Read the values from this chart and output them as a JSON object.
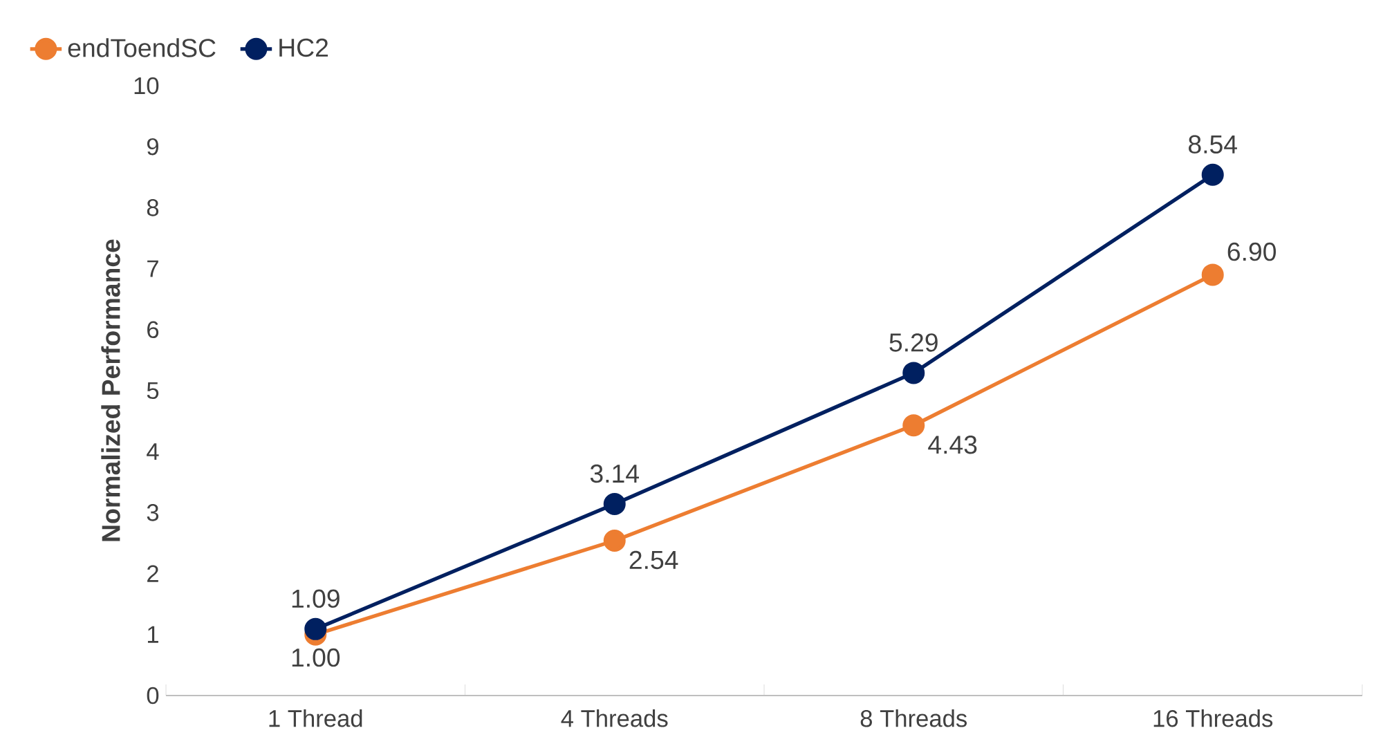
{
  "chart_data": {
    "type": "line",
    "ylabel": "Normalized Performance",
    "categories": [
      "1 Thread",
      "4 Threads",
      "8 Threads",
      "16 Threads"
    ],
    "series": [
      {
        "name": "endToendSC",
        "color": "#ed7d31",
        "values": [
          1.0,
          2.54,
          4.43,
          6.9
        ],
        "value_labels": [
          "1.00",
          "2.54",
          "4.43",
          "6.90"
        ]
      },
      {
        "name": "HC2",
        "color": "#002060",
        "values": [
          1.09,
          3.14,
          5.29,
          8.54
        ],
        "value_labels": [
          "1.09",
          "3.14",
          "5.29",
          "8.54"
        ]
      }
    ],
    "ylim": [
      0,
      10
    ],
    "yticks": [
      0,
      1,
      2,
      3,
      4,
      5,
      6,
      7,
      8,
      9,
      10
    ],
    "grid": false,
    "legend": "top left",
    "marker": "circle",
    "line_style": "solid"
  }
}
